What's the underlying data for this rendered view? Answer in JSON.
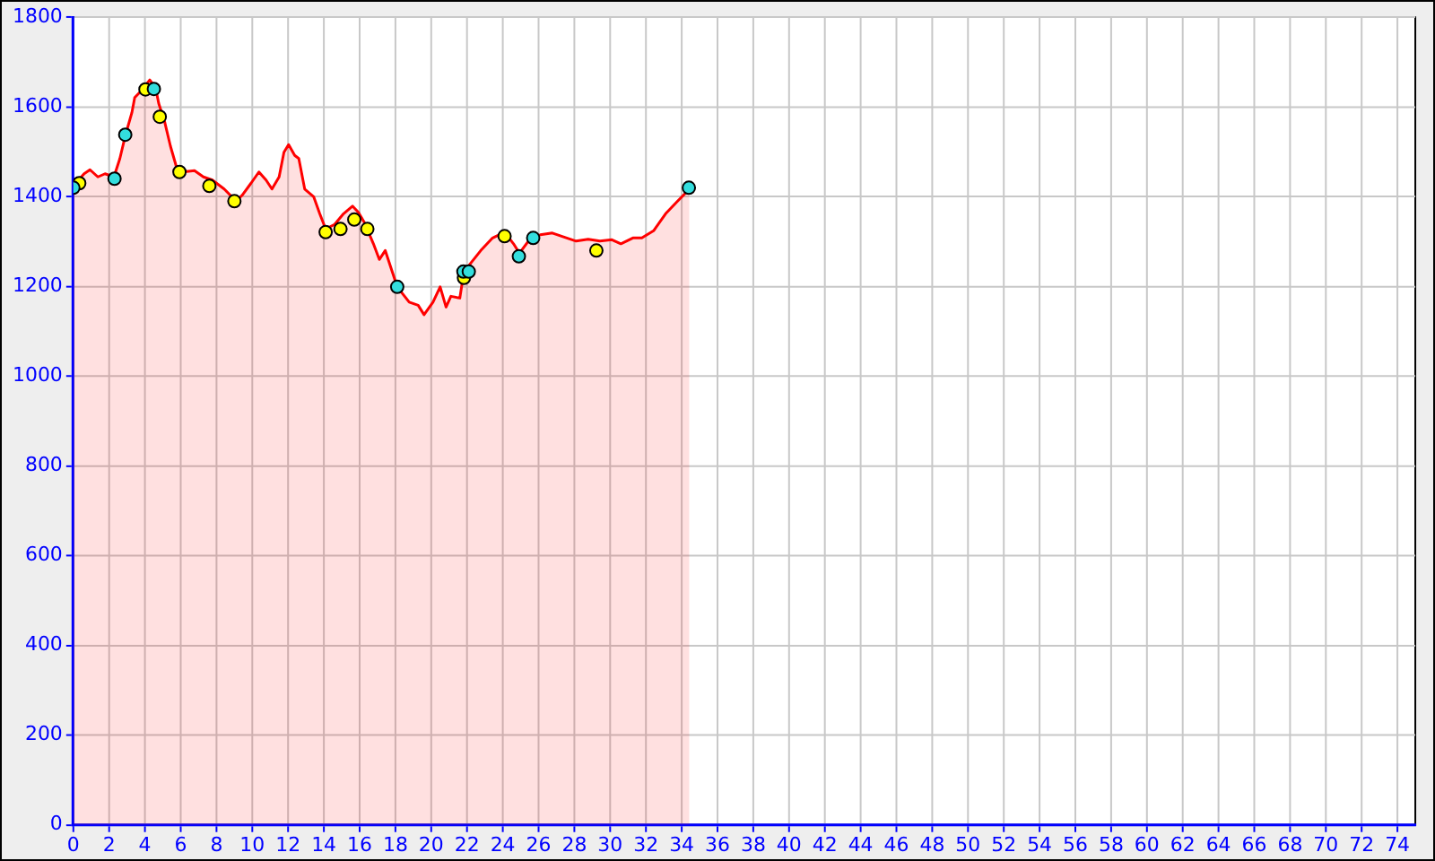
{
  "chart_data": {
    "type": "area",
    "xlim": [
      0,
      75
    ],
    "ylim": [
      0,
      1800
    ],
    "xticks": [
      0,
      2,
      4,
      6,
      8,
      10,
      12,
      14,
      16,
      18,
      20,
      22,
      24,
      26,
      28,
      30,
      32,
      34,
      36,
      38,
      40,
      42,
      44,
      46,
      48,
      50,
      52,
      54,
      56,
      58,
      60,
      62,
      64,
      66,
      68,
      70,
      72,
      74
    ],
    "yticks": [
      0,
      200,
      400,
      600,
      800,
      1000,
      1200,
      1400,
      1600,
      1800
    ],
    "grid": true,
    "legend": false,
    "series": [
      {
        "color": "#ff0000",
        "marker": "none",
        "x": [
          0,
          0.6,
          0.93,
          1.37,
          1.77,
          2.27,
          2.6,
          2.93,
          3.27,
          3.43,
          3.77,
          4.27,
          4.6,
          4.77,
          5.1,
          5.43,
          5.77,
          6.1,
          6.77,
          7.27,
          7.77,
          8.43,
          9.1,
          9.43,
          9.93,
          10.37,
          10.77,
          11.1,
          11.5,
          11.77,
          12.03,
          12.37,
          12.6,
          12.93,
          13.43,
          13.77,
          14.1,
          14.6,
          15.1,
          15.6,
          15.93,
          16.27,
          16.77,
          17.1,
          17.43,
          18.1,
          18.77,
          19.27,
          19.6,
          20.1,
          20.5,
          20.83,
          21.1,
          21.6,
          21.83,
          22.77,
          23.43,
          24.1,
          24.6,
          24.93,
          25.43,
          26.1,
          26.77,
          27.43,
          28.1,
          28.77,
          29.43,
          30.1,
          30.6,
          31.27,
          31.77,
          32.43,
          33.1,
          33.77,
          34.43
        ],
        "values": [
          1424,
          1451,
          1460,
          1444,
          1451,
          1444,
          1485,
          1540,
          1587,
          1621,
          1635,
          1660,
          1642,
          1608,
          1567,
          1512,
          1465,
          1455,
          1458,
          1444,
          1437,
          1417,
          1390,
          1403,
          1430,
          1455,
          1437,
          1417,
          1444,
          1499,
          1516,
          1492,
          1485,
          1417,
          1400,
          1362,
          1328,
          1338,
          1362,
          1379,
          1365,
          1342,
          1295,
          1260,
          1280,
          1199,
          1165,
          1158,
          1137,
          1165,
          1199,
          1154,
          1178,
          1174,
          1233,
          1280,
          1308,
          1321,
          1295,
          1274,
          1301,
          1315,
          1319,
          1310,
          1301,
          1305,
          1301,
          1304,
          1295,
          1308,
          1308,
          1324,
          1362,
          1390,
          1417
        ]
      },
      {
        "type": "scatter",
        "color": "#33dddd",
        "marker": "circle",
        "x": [
          0,
          2.3,
          2.9,
          4.5,
          18.1,
          21.8,
          22.1,
          24.9,
          25.7,
          34.4
        ],
        "values": [
          1420,
          1440,
          1538,
          1640,
          1199,
          1233,
          1233,
          1267,
          1308,
          1420
        ]
      },
      {
        "type": "scatter",
        "color": "#ffff00",
        "marker": "circle",
        "x": [
          0.33,
          4.03,
          4.83,
          5.93,
          7.6,
          9.0,
          14.1,
          14.93,
          15.7,
          16.43,
          21.83,
          24.1,
          29.23
        ],
        "values": [
          1430,
          1639,
          1578,
          1455,
          1424,
          1390,
          1321,
          1328,
          1349,
          1328,
          1219,
          1312,
          1280
        ]
      }
    ]
  }
}
